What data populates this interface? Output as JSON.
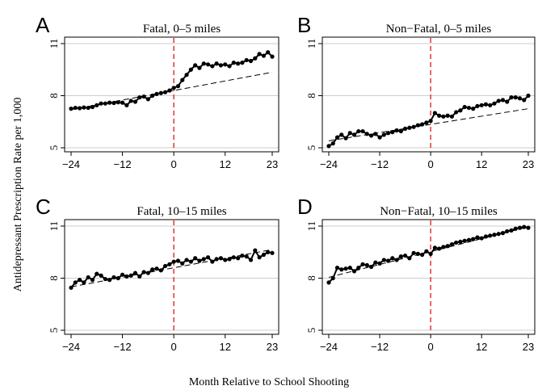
{
  "figure": {
    "ylabel": "Antidepressant Prescription Rate per 1,000",
    "xlabel": "Month Relative to School Shooting"
  },
  "chart_data": [
    {
      "type": "line",
      "panel": "A",
      "title": "Fatal, 0–5 miles",
      "xlim": [
        -24,
        23
      ],
      "ylim": [
        5,
        11
      ],
      "xticks": [
        -24,
        -12,
        0,
        12,
        23
      ],
      "xtick_labels": [
        "−24",
        "−12",
        "0",
        "12",
        "23"
      ],
      "yticks": [
        5,
        8,
        11
      ],
      "event_x": 0,
      "series": [
        {
          "style": "markers-line",
          "x": [
            -24,
            -23,
            -22,
            -21,
            -20,
            -19,
            -18,
            -17,
            -16,
            -15,
            -14,
            -13,
            -12,
            -11,
            -10,
            -9,
            -8,
            -7,
            -6,
            -5,
            -4,
            -3,
            -2,
            -1,
            0,
            1,
            2,
            3,
            4,
            5,
            6,
            7,
            8,
            9,
            10,
            11,
            12,
            13,
            14,
            15,
            16,
            17,
            18,
            19,
            20,
            21,
            22,
            23
          ],
          "values": [
            7.25,
            7.3,
            7.28,
            7.32,
            7.3,
            7.35,
            7.45,
            7.55,
            7.55,
            7.6,
            7.58,
            7.62,
            7.6,
            7.45,
            7.7,
            7.65,
            7.9,
            7.95,
            7.8,
            8.0,
            8.1,
            8.15,
            8.2,
            8.3,
            8.45,
            8.55,
            8.9,
            9.2,
            9.5,
            9.75,
            9.6,
            9.85,
            9.8,
            9.7,
            9.85,
            9.75,
            9.8,
            9.7,
            9.9,
            9.85,
            9.9,
            10.05,
            10.0,
            10.15,
            10.4,
            10.3,
            10.5,
            10.25
          ]
        },
        {
          "style": "dashed",
          "x": [
            -24,
            23
          ],
          "values": [
            7.2,
            9.35
          ]
        }
      ]
    },
    {
      "type": "line",
      "panel": "B",
      "title": "Non−Fatal, 0–5 miles",
      "xlim": [
        -24,
        23
      ],
      "ylim": [
        5,
        11
      ],
      "xticks": [
        -24,
        -12,
        0,
        12,
        23
      ],
      "xtick_labels": [
        "−24",
        "−12",
        "0",
        "12",
        "23"
      ],
      "yticks": [
        5,
        8,
        11
      ],
      "event_x": 0,
      "series": [
        {
          "style": "markers-line",
          "x": [
            -24,
            -23,
            -22,
            -21,
            -20,
            -19,
            -18,
            -17,
            -16,
            -15,
            -14,
            -13,
            -12,
            -11,
            -10,
            -9,
            -8,
            -7,
            -6,
            -5,
            -4,
            -3,
            -2,
            -1,
            0,
            1,
            2,
            3,
            4,
            5,
            6,
            7,
            8,
            9,
            10,
            11,
            12,
            13,
            14,
            15,
            16,
            17,
            18,
            19,
            20,
            21,
            22,
            23
          ],
          "values": [
            5.1,
            5.25,
            5.6,
            5.75,
            5.55,
            5.85,
            5.75,
            5.95,
            5.95,
            5.8,
            5.7,
            5.8,
            5.6,
            5.75,
            5.85,
            5.9,
            6.0,
            5.95,
            6.1,
            6.15,
            6.2,
            6.3,
            6.35,
            6.45,
            6.55,
            7.0,
            6.85,
            6.8,
            6.85,
            6.8,
            7.05,
            7.15,
            7.35,
            7.3,
            7.25,
            7.4,
            7.45,
            7.5,
            7.45,
            7.55,
            7.7,
            7.75,
            7.65,
            7.9,
            7.9,
            7.85,
            7.75,
            8.0
          ]
        },
        {
          "style": "dashed",
          "x": [
            -24,
            23
          ],
          "values": [
            5.4,
            7.25
          ]
        }
      ]
    },
    {
      "type": "line",
      "panel": "C",
      "title": "Fatal, 10–15 miles",
      "xlim": [
        -24,
        23
      ],
      "ylim": [
        5,
        11
      ],
      "xticks": [
        -24,
        -12,
        0,
        12,
        23
      ],
      "xtick_labels": [
        "−24",
        "−12",
        "0",
        "12",
        "23"
      ],
      "yticks": [
        5,
        8,
        11
      ],
      "event_x": 0,
      "series": [
        {
          "style": "markers-line",
          "x": [
            -24,
            -23,
            -22,
            -21,
            -20,
            -19,
            -18,
            -17,
            -16,
            -15,
            -14,
            -13,
            -12,
            -11,
            -10,
            -9,
            -8,
            -7,
            -6,
            -5,
            -4,
            -3,
            -2,
            -1,
            0,
            1,
            2,
            3,
            4,
            5,
            6,
            7,
            8,
            9,
            10,
            11,
            12,
            13,
            14,
            15,
            16,
            17,
            18,
            19,
            20,
            21,
            22,
            23
          ],
          "values": [
            7.45,
            7.75,
            7.9,
            7.75,
            8.05,
            7.9,
            8.25,
            8.15,
            7.95,
            7.9,
            8.05,
            8.0,
            8.2,
            8.1,
            8.15,
            8.3,
            8.1,
            8.35,
            8.3,
            8.5,
            8.55,
            8.45,
            8.7,
            8.8,
            8.95,
            9.0,
            8.85,
            9.05,
            8.95,
            9.15,
            9.0,
            9.1,
            9.2,
            8.95,
            9.1,
            9.15,
            9.05,
            9.1,
            9.2,
            9.15,
            9.3,
            9.25,
            9.05,
            9.6,
            9.2,
            9.35,
            9.5,
            9.45
          ]
        },
        {
          "style": "dashed",
          "x": [
            -24,
            23
          ],
          "values": [
            7.5,
            9.65
          ]
        }
      ]
    },
    {
      "type": "line",
      "panel": "D",
      "title": "Non−Fatal, 10–15 miles",
      "xlim": [
        -24,
        23
      ],
      "ylim": [
        5,
        11
      ],
      "xticks": [
        -24,
        -12,
        0,
        12,
        23
      ],
      "xtick_labels": [
        "−24",
        "−12",
        "0",
        "12",
        "23"
      ],
      "yticks": [
        5,
        8,
        11
      ],
      "event_x": 0,
      "series": [
        {
          "style": "markers-line",
          "x": [
            -24,
            -23,
            -22,
            -21,
            -20,
            -19,
            -18,
            -17,
            -16,
            -15,
            -14,
            -13,
            -12,
            -11,
            -10,
            -9,
            -8,
            -7,
            -6,
            -5,
            -4,
            -3,
            -2,
            -1,
            0,
            1,
            2,
            3,
            4,
            5,
            6,
            7,
            8,
            9,
            10,
            11,
            12,
            13,
            14,
            15,
            16,
            17,
            18,
            19,
            20,
            21,
            22,
            23
          ],
          "values": [
            7.75,
            8.0,
            8.6,
            8.5,
            8.55,
            8.6,
            8.4,
            8.6,
            8.8,
            8.75,
            8.65,
            8.9,
            8.85,
            9.05,
            9.0,
            9.15,
            9.05,
            9.25,
            9.3,
            9.15,
            9.45,
            9.4,
            9.35,
            9.55,
            9.4,
            9.75,
            9.7,
            9.8,
            9.85,
            9.95,
            10.05,
            10.1,
            10.15,
            10.2,
            10.25,
            10.35,
            10.3,
            10.4,
            10.45,
            10.5,
            10.55,
            10.6,
            10.7,
            10.75,
            10.85,
            10.9,
            10.95,
            10.9
          ]
        },
        {
          "style": "dashed",
          "x": [
            -24,
            23
          ],
          "values": [
            8.05,
            10.95
          ]
        }
      ]
    }
  ],
  "colors": {
    "grid": "#cccccc",
    "event_line": "#e8403f",
    "series": "#000000"
  }
}
